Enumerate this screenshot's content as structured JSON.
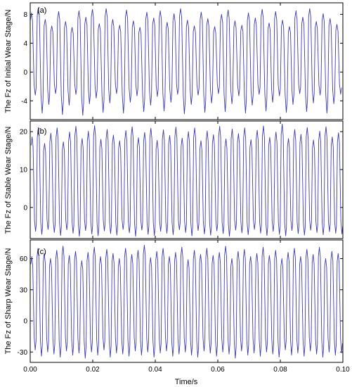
{
  "chart_data": [
    {
      "type": "line",
      "panel_label": "(a)",
      "ylabel": "The Fz of Initial Wear Stage/N",
      "xlim": [
        0,
        0.1
      ],
      "ylim": [
        -6.6,
        9.6
      ],
      "yticks": [
        -4,
        0,
        4,
        8
      ],
      "ytick_labels": [
        "-4",
        "0",
        "4",
        "8"
      ],
      "grid": false,
      "color": "#3b3bb0",
      "series": [
        {
          "cycle_period": 0.00217,
          "x_peaks": [
            0.0004,
            0.0026,
            0.0048,
            0.0069,
            0.0091,
            0.0113,
            0.0134,
            0.0156,
            0.0178,
            0.0199,
            0.0221,
            0.0243,
            0.0264,
            0.0286,
            0.0308,
            0.033,
            0.0351,
            0.0373,
            0.0395,
            0.0416,
            0.0438,
            0.046,
            0.0481,
            0.0503,
            0.0525,
            0.0547,
            0.0568,
            0.059,
            0.0612,
            0.0633,
            0.0655,
            0.0677,
            0.0698,
            0.072,
            0.0742,
            0.0764,
            0.0785,
            0.0807,
            0.0829,
            0.085,
            0.0872,
            0.0894,
            0.0915,
            0.0937,
            0.0959,
            0.0981
          ],
          "peaks": [
            8.2,
            8.9,
            7.3,
            6.4,
            8.4,
            7.0,
            6.2,
            8.5,
            7.6,
            8.7,
            6.7,
            8.8,
            7.3,
            6.5,
            8.6,
            7.1,
            6.2,
            8.3,
            7.5,
            8.5,
            6.9,
            8.1,
            8.8,
            7.2,
            6.4,
            8.3,
            7.4,
            6.3,
            8.0,
            8.6,
            7.1,
            6.5,
            8.2,
            7.5,
            8.7,
            6.8,
            8.4,
            7.2,
            6.3,
            8.5,
            7.6,
            8.8,
            7.0,
            8.1,
            7.4,
            6.6
          ],
          "troughs": [
            -3.2,
            -5.7,
            -4.5,
            -3.0,
            -5.9,
            -4.6,
            -3.1,
            -6.0,
            -4.4,
            -3.6,
            -5.6,
            -4.3,
            -3.0,
            -5.7,
            -4.2,
            -3.3,
            -5.5,
            -4.6,
            -3.4,
            -5.4,
            -4.2,
            -3.1,
            -5.8,
            -4.5,
            -3.2,
            -5.6,
            -4.3,
            -3.0,
            -5.5,
            -4.4,
            -3.3,
            -5.7,
            -4.6,
            -3.1,
            -5.4,
            -4.2,
            -3.3,
            -5.6,
            -4.5,
            -3.0,
            -5.5,
            -4.3,
            -3.2,
            -5.7,
            -4.4,
            -3.1
          ]
        }
      ]
    },
    {
      "type": "line",
      "panel_label": "(b)",
      "ylabel": "The Fz of Stable Wear Stage/N",
      "xlim": [
        0,
        0.1
      ],
      "ylim": [
        -8.2,
        22.8
      ],
      "yticks": [
        0,
        10,
        20
      ],
      "ytick_labels": [
        "0",
        "10",
        "20"
      ],
      "grid": false,
      "color": "#3b3bb0",
      "series": [
        {
          "cycle_period": 0.002,
          "x_peaks": [
            0.0006,
            0.0026,
            0.0046,
            0.0066,
            0.0086,
            0.0106,
            0.0126,
            0.0146,
            0.0166,
            0.0186,
            0.0206,
            0.0226,
            0.0246,
            0.0266,
            0.0286,
            0.0306,
            0.0326,
            0.0346,
            0.0366,
            0.0386,
            0.0406,
            0.0426,
            0.0446,
            0.0466,
            0.0486,
            0.0506,
            0.0526,
            0.0546,
            0.0566,
            0.0586,
            0.0606,
            0.0626,
            0.0646,
            0.0666,
            0.0686,
            0.0706,
            0.0726,
            0.0746,
            0.0766,
            0.0786,
            0.0806,
            0.0826,
            0.0846,
            0.0866,
            0.0886,
            0.0906,
            0.0926,
            0.0946,
            0.0966,
            0.0986
          ],
          "peaks": [
            18.6,
            21.1,
            16.9,
            19.6,
            21.0,
            17.3,
            19.9,
            21.4,
            18.2,
            20.1,
            21.6,
            18.0,
            20.6,
            19.1,
            17.6,
            20.3,
            21.3,
            18.4,
            19.8,
            20.9,
            17.7,
            20.5,
            19.0,
            21.2,
            18.3,
            20.0,
            21.0,
            17.6,
            20.2,
            19.2,
            21.4,
            18.1,
            20.7,
            19.5,
            21.0,
            17.9,
            20.4,
            21.5,
            18.5,
            19.9,
            22.0,
            18.2,
            20.6,
            19.3,
            21.1,
            17.8,
            20.1,
            21.3,
            18.6,
            19.7
          ],
          "troughs": [
            -6.3,
            -7.1,
            -5.8,
            -6.6,
            -7.4,
            -5.9,
            -6.8,
            -7.6,
            -6.1,
            -7.0,
            -7.5,
            -6.2,
            -6.9,
            -7.3,
            -5.8,
            -6.7,
            -7.6,
            -6.0,
            -7.1,
            -7.4,
            -6.3,
            -6.8,
            -7.2,
            -5.9,
            -6.6,
            -7.5,
            -6.1,
            -7.0,
            -7.3,
            -6.2,
            -6.9,
            -7.6,
            -6.0,
            -6.7,
            -7.2,
            -5.8,
            -6.8,
            -7.4,
            -6.3,
            -7.1,
            -7.5,
            -6.1,
            -6.9,
            -7.3,
            -6.0,
            -6.6,
            -7.2,
            -6.4,
            -6.8,
            -7.0
          ]
        }
      ]
    },
    {
      "type": "line",
      "panel_label": "(c)",
      "ylabel": "The Fz of Sharp Wear Stage/N",
      "xlim": [
        0,
        0.1
      ],
      "ylim": [
        -40,
        78
      ],
      "yticks": [
        -30,
        0,
        30,
        60
      ],
      "ytick_labels": [
        "-30",
        "0",
        "30",
        "60"
      ],
      "xticks": [
        0.0,
        0.02,
        0.04,
        0.06,
        0.08,
        0.1
      ],
      "xtick_labels": [
        "0.00",
        "0.02",
        "0.04",
        "0.06",
        "0.08",
        "0.10"
      ],
      "xlabel": "Time/s",
      "grid": false,
      "color": "#3b3bb0",
      "series": [
        {
          "cycle_period": 0.002,
          "x_peaks": [
            0.0005,
            0.0025,
            0.0045,
            0.0065,
            0.0085,
            0.0105,
            0.0125,
            0.0145,
            0.0165,
            0.0185,
            0.0205,
            0.0225,
            0.0245,
            0.0265,
            0.0285,
            0.0305,
            0.0325,
            0.0345,
            0.0365,
            0.0385,
            0.0405,
            0.0425,
            0.0445,
            0.0465,
            0.0485,
            0.0505,
            0.0525,
            0.0545,
            0.0565,
            0.0585,
            0.0605,
            0.0625,
            0.0645,
            0.0665,
            0.0685,
            0.0705,
            0.0725,
            0.0745,
            0.0765,
            0.0785,
            0.0805,
            0.0825,
            0.0845,
            0.0865,
            0.0885,
            0.0905,
            0.0925,
            0.0945,
            0.0965,
            0.0985
          ],
          "peaks": [
            62,
            70,
            65,
            60,
            68,
            72,
            63,
            67,
            58,
            66,
            71,
            62,
            69,
            65,
            60,
            70,
            64,
            68,
            73,
            61,
            67,
            70,
            62,
            66,
            71,
            59,
            68,
            64,
            70,
            63,
            66,
            72,
            60,
            67,
            69,
            62,
            65,
            71,
            63,
            68,
            60,
            66,
            70,
            62,
            69,
            64,
            71,
            60,
            67,
            65
          ],
          "troughs": [
            -28,
            -34,
            -30,
            -32,
            -35,
            -29,
            -33,
            -31,
            -36,
            -30,
            -33,
            -28,
            -35,
            -31,
            -32,
            -34,
            -29,
            -33,
            -30,
            -35,
            -31,
            -29,
            -34,
            -32,
            -30,
            -33,
            -35,
            -29,
            -31,
            -34,
            -30,
            -32,
            -36,
            -29,
            -33,
            -31,
            -34,
            -30,
            -32,
            -35,
            -28,
            -33,
            -31,
            -34,
            -29,
            -32,
            -35,
            -30,
            -33,
            -31
          ]
        }
      ]
    }
  ]
}
